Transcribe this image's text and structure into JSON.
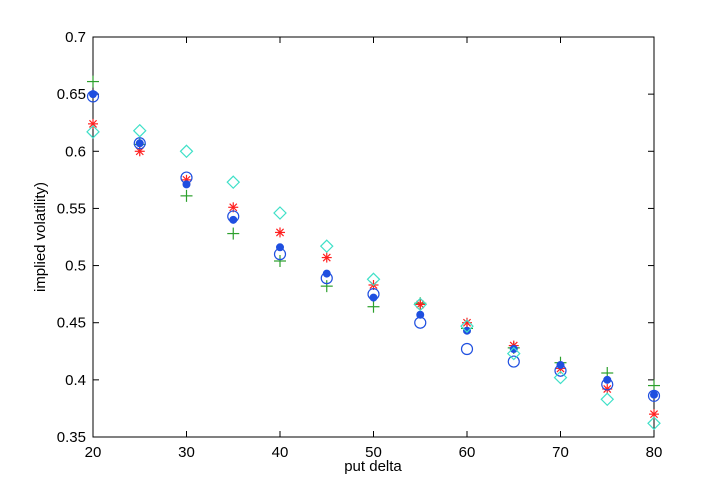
{
  "chart_data": {
    "type": "scatter",
    "title": "",
    "xlabel": "put delta",
    "ylabel": "implied volatility)",
    "xlim": [
      20,
      80
    ],
    "ylim": [
      0.35,
      0.7
    ],
    "xticks": [
      20,
      30,
      40,
      50,
      60,
      70,
      80
    ],
    "yticks": [
      0.35,
      0.4,
      0.45,
      0.5,
      0.55,
      0.6,
      0.65,
      0.7
    ],
    "xtick_labels": [
      "20",
      "30",
      "40",
      "50",
      "60",
      "70",
      "80"
    ],
    "ytick_labels": [
      "0.35",
      "0.4",
      "0.45",
      "0.5",
      "0.55",
      "0.6",
      "0.65",
      "0.7"
    ],
    "grid": false,
    "legend": "none",
    "x": [
      20,
      25,
      30,
      35,
      40,
      45,
      50,
      55,
      60,
      65,
      70,
      75,
      80
    ],
    "series": [
      {
        "marker": "plus",
        "color": "#2ca02c",
        "values": [
          0.661,
          0.606,
          0.561,
          0.528,
          0.504,
          0.482,
          0.464,
          0.467,
          0.445,
          0.428,
          0.415,
          0.406,
          0.395
        ]
      },
      {
        "marker": "asterisk",
        "color": "#ff2020",
        "values": [
          0.624,
          0.6,
          0.575,
          0.551,
          0.529,
          0.507,
          0.483,
          0.466,
          0.45,
          0.43,
          0.41,
          0.392,
          0.37
        ]
      },
      {
        "marker": "circle-open",
        "color": "#1f4fe0",
        "values": [
          0.648,
          0.607,
          0.577,
          0.543,
          0.51,
          0.489,
          0.475,
          0.45,
          0.427,
          0.416,
          0.408,
          0.396,
          0.386
        ]
      },
      {
        "marker": "circle-filled",
        "color": "#1f4fe0",
        "values": [
          0.65,
          0.607,
          0.571,
          0.54,
          0.516,
          0.493,
          0.472,
          0.457,
          0.443,
          0.427,
          0.413,
          0.4,
          0.387
        ]
      },
      {
        "marker": "diamond",
        "color": "#40e0c8",
        "values": [
          0.617,
          0.618,
          0.6,
          0.573,
          0.546,
          0.517,
          0.488,
          0.466,
          0.447,
          0.423,
          0.402,
          0.383,
          0.362
        ]
      }
    ]
  }
}
